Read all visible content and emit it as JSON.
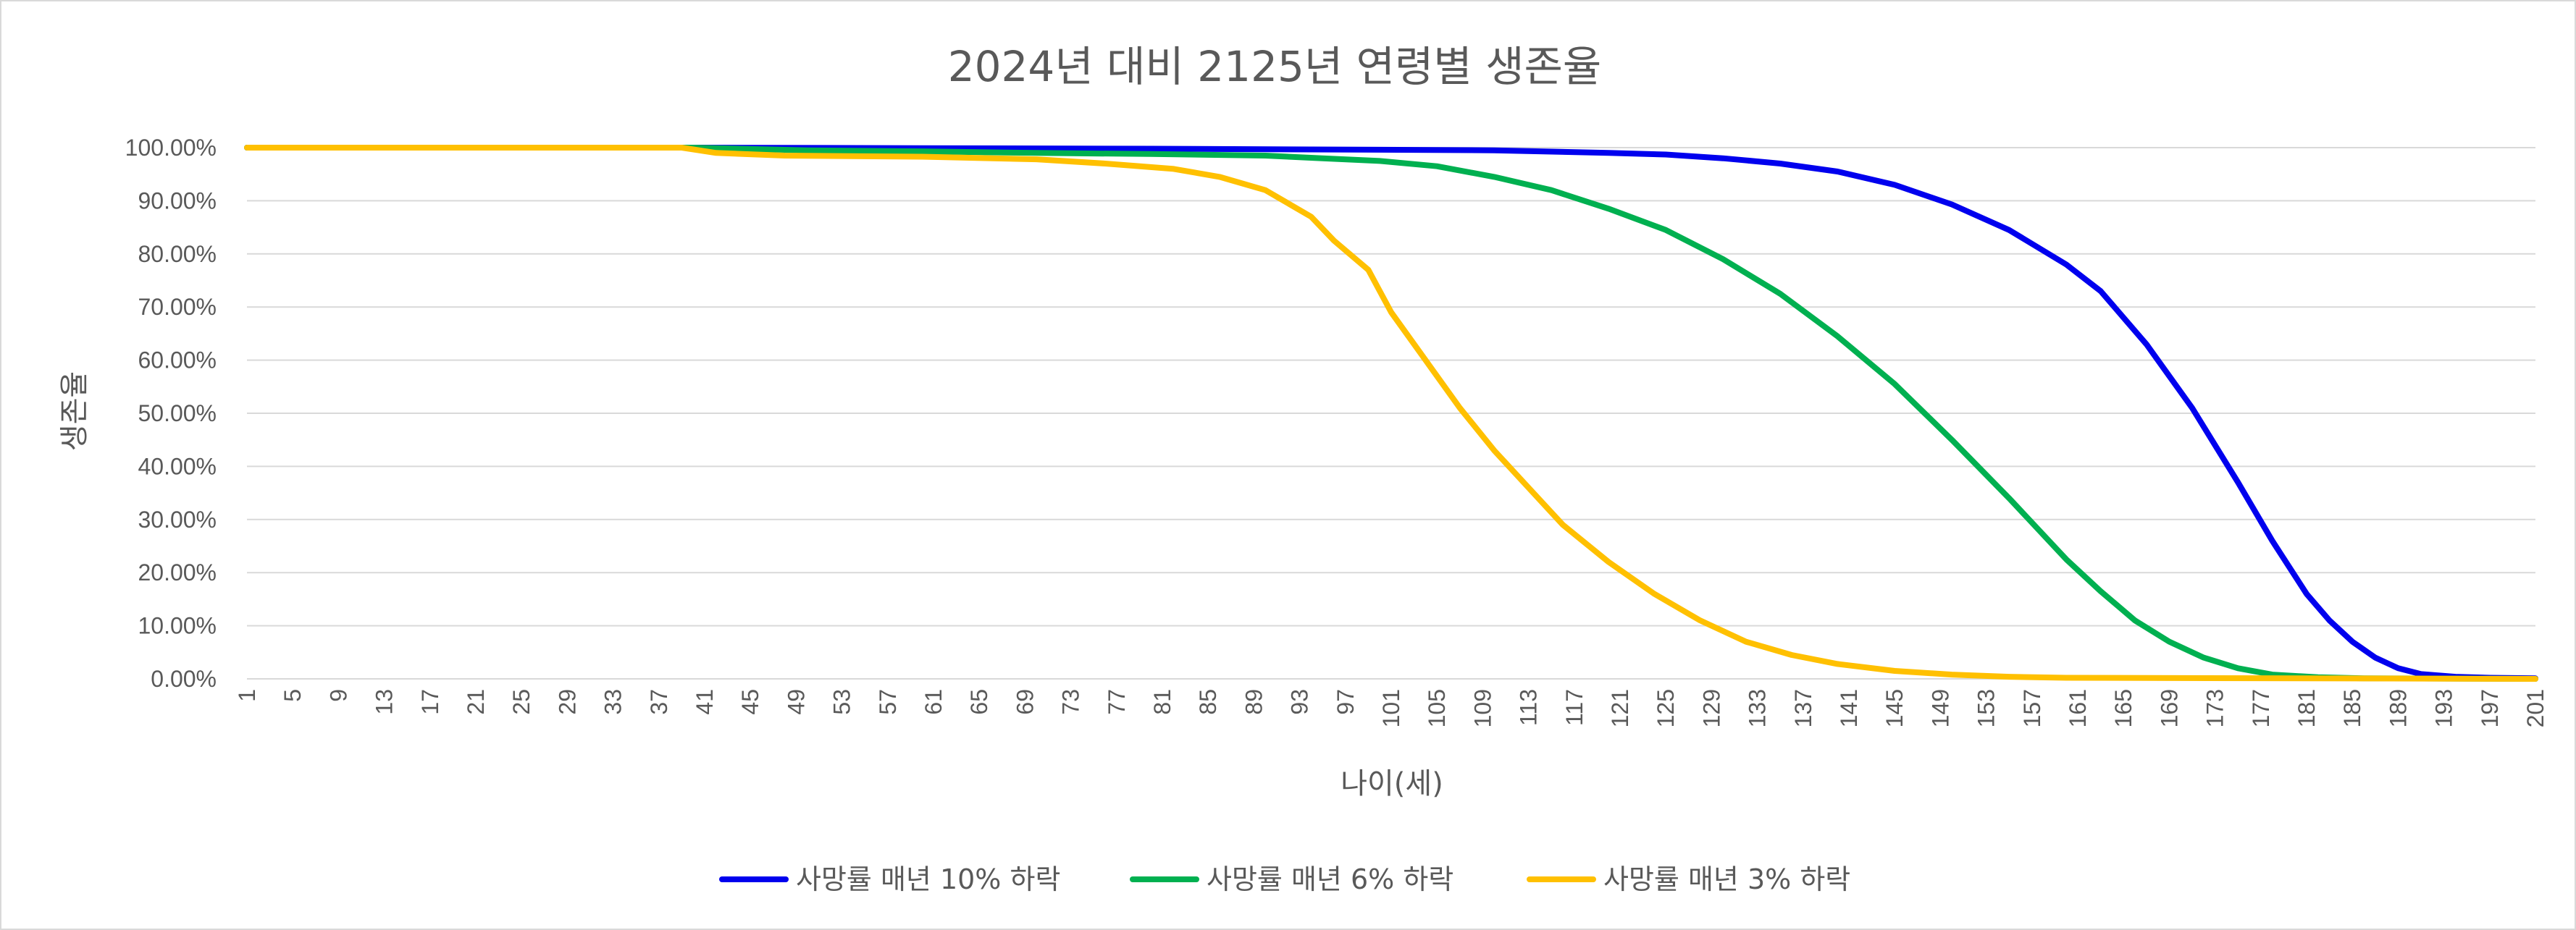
{
  "chart_data": {
    "type": "line",
    "title": "2024년 대비 2125년 연령별 생존율",
    "xlabel": "나이(세)",
    "ylabel": "생존율",
    "x_range": [
      1,
      201
    ],
    "x_tick_step": 4,
    "x_tick_labels": [
      "1",
      "5",
      "9",
      "13",
      "17",
      "21",
      "25",
      "29",
      "33",
      "37",
      "41",
      "45",
      "49",
      "53",
      "57",
      "61",
      "65",
      "69",
      "73",
      "77",
      "81",
      "85",
      "89",
      "93",
      "97",
      "101",
      "105",
      "109",
      "113",
      "117",
      "121",
      "125",
      "129",
      "133",
      "137",
      "141",
      "145",
      "149",
      "153",
      "157",
      "161",
      "165",
      "169",
      "173",
      "177",
      "181",
      "185",
      "189",
      "193",
      "197",
      "201"
    ],
    "ylim": [
      0,
      1
    ],
    "y_tick_labels": [
      "0.00%",
      "10.00%",
      "20.00%",
      "30.00%",
      "40.00%",
      "50.00%",
      "60.00%",
      "70.00%",
      "80.00%",
      "90.00%",
      "100.00%"
    ],
    "grid": true,
    "legend_position": "bottom",
    "series": [
      {
        "name": "사망률 매년 10% 하락",
        "color": "#0000ee",
        "points": [
          [
            1,
            1.0
          ],
          [
            40,
            1.0
          ],
          [
            60,
            0.999
          ],
          [
            80,
            0.998
          ],
          [
            100,
            0.996
          ],
          [
            110,
            0.995
          ],
          [
            120,
            0.99
          ],
          [
            125,
            0.987
          ],
          [
            130,
            0.98
          ],
          [
            135,
            0.97
          ],
          [
            140,
            0.955
          ],
          [
            145,
            0.93
          ],
          [
            150,
            0.893
          ],
          [
            155,
            0.845
          ],
          [
            160,
            0.78
          ],
          [
            163,
            0.73
          ],
          [
            167,
            0.63
          ],
          [
            171,
            0.51
          ],
          [
            175,
            0.37
          ],
          [
            178,
            0.26
          ],
          [
            181,
            0.16
          ],
          [
            183,
            0.11
          ],
          [
            185,
            0.07
          ],
          [
            187,
            0.04
          ],
          [
            189,
            0.02
          ],
          [
            191,
            0.009
          ],
          [
            194,
            0.004
          ],
          [
            197,
            0.002
          ],
          [
            201,
            0.001
          ]
        ]
      },
      {
        "name": "사망률 매년 6% 하락",
        "color": "#00b050",
        "points": [
          [
            1,
            1.0
          ],
          [
            40,
            1.0
          ],
          [
            50,
            0.995
          ],
          [
            60,
            0.993
          ],
          [
            70,
            0.99
          ],
          [
            80,
            0.988
          ],
          [
            90,
            0.985
          ],
          [
            95,
            0.98
          ],
          [
            100,
            0.975
          ],
          [
            105,
            0.965
          ],
          [
            110,
            0.945
          ],
          [
            115,
            0.92
          ],
          [
            120,
            0.885
          ],
          [
            125,
            0.845
          ],
          [
            130,
            0.79
          ],
          [
            135,
            0.725
          ],
          [
            140,
            0.645
          ],
          [
            145,
            0.555
          ],
          [
            150,
            0.45
          ],
          [
            155,
            0.34
          ],
          [
            160,
            0.225
          ],
          [
            163,
            0.165
          ],
          [
            166,
            0.11
          ],
          [
            169,
            0.07
          ],
          [
            172,
            0.04
          ],
          [
            175,
            0.02
          ],
          [
            178,
            0.008
          ],
          [
            182,
            0.003
          ],
          [
            186,
            0.001
          ],
          [
            201,
            0.0
          ]
        ]
      },
      {
        "name": "사망률 매년 3% 하락",
        "color": "#ffc000",
        "points": [
          [
            1,
            1.0
          ],
          [
            39,
            1.0
          ],
          [
            42,
            0.99
          ],
          [
            48,
            0.985
          ],
          [
            60,
            0.983
          ],
          [
            70,
            0.978
          ],
          [
            76,
            0.97
          ],
          [
            82,
            0.96
          ],
          [
            86,
            0.945
          ],
          [
            90,
            0.92
          ],
          [
            94,
            0.87
          ],
          [
            96,
            0.825
          ],
          [
            99,
            0.77
          ],
          [
            101,
            0.69
          ],
          [
            104,
            0.6
          ],
          [
            107,
            0.51
          ],
          [
            110,
            0.43
          ],
          [
            113,
            0.36
          ],
          [
            116,
            0.29
          ],
          [
            120,
            0.22
          ],
          [
            124,
            0.16
          ],
          [
            128,
            0.11
          ],
          [
            132,
            0.07
          ],
          [
            136,
            0.045
          ],
          [
            140,
            0.028
          ],
          [
            145,
            0.015
          ],
          [
            150,
            0.008
          ],
          [
            155,
            0.004
          ],
          [
            160,
            0.002
          ],
          [
            201,
            0.0
          ]
        ]
      }
    ]
  }
}
